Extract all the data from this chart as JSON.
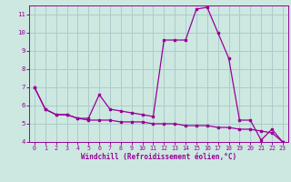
{
  "xlabel": "Windchill (Refroidissement éolien,°C)",
  "background_color": "#cce8e0",
  "line_color": "#990099",
  "grid_color": "#aacccc",
  "x_values": [
    0,
    1,
    2,
    3,
    4,
    5,
    6,
    7,
    8,
    9,
    10,
    11,
    12,
    13,
    14,
    15,
    16,
    17,
    18,
    19,
    20,
    21,
    22,
    23
  ],
  "series1": [
    7.0,
    5.8,
    5.5,
    5.5,
    5.3,
    5.3,
    6.6,
    5.8,
    5.7,
    5.6,
    5.5,
    5.4,
    9.6,
    9.6,
    9.6,
    11.3,
    11.4,
    10.0,
    8.6,
    5.2,
    5.2,
    4.1,
    4.7,
    4.0
  ],
  "series2": [
    7.0,
    5.8,
    5.5,
    5.5,
    5.3,
    5.2,
    5.2,
    5.2,
    5.1,
    5.1,
    5.1,
    5.0,
    5.0,
    5.0,
    4.9,
    4.9,
    4.9,
    4.8,
    4.8,
    4.7,
    4.7,
    4.6,
    4.5,
    4.0
  ],
  "ylim": [
    4,
    11.5
  ],
  "xlim": [
    -0.5,
    23.5
  ],
  "yticks": [
    4,
    5,
    6,
    7,
    8,
    9,
    10,
    11
  ],
  "xticks": [
    0,
    1,
    2,
    3,
    4,
    5,
    6,
    7,
    8,
    9,
    10,
    11,
    12,
    13,
    14,
    15,
    16,
    17,
    18,
    19,
    20,
    21,
    22,
    23
  ]
}
